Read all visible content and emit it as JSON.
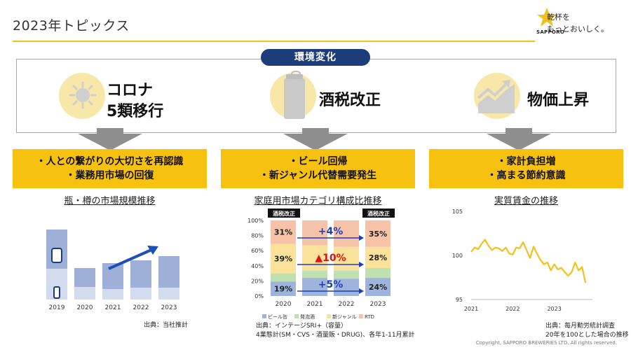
{
  "page": {
    "title": "2023年トピックス",
    "copyright": "Copyright, SAPPORO BREWERIES LTD. All rights reserved."
  },
  "logo": {
    "slogan_line1": "乾杯を",
    "slogan_line2": "もっとおいしく。",
    "brand": "SAPPORO"
  },
  "env": {
    "label": "環境変化"
  },
  "topics": [
    {
      "line1": "コロナ",
      "line2": "5類移行",
      "icon": "virus-icon",
      "box_line1": "・人との繋がりの大切さを再認識",
      "box_line2": "・業務用市場の回復",
      "chart_title": "瓶・樽の市場規模推移",
      "source": "出典：当社推計"
    },
    {
      "line1": "酒税改正",
      "icon": "beer-can-icon",
      "box_line1": "・ビール回帰",
      "box_line2": "・新ジャンル代替需要発生",
      "chart_title": "家庭用市場カテゴリ構成比推移",
      "source_line1": "出典：インテージSRI+（容量）",
      "source_line2": "4業態計(SM・CVS・酒量販・DRUG)、各年1-11月累計"
    },
    {
      "line1": "物価上昇",
      "icon": "rising-chart-icon",
      "box_line1": "・家計負担増",
      "box_line2": "・高まる節約意識",
      "chart_title": "実質賃金の推移",
      "source_line1": "出典：毎月勤労統計調査",
      "source_line2": "20年を100とした場合の推移"
    }
  ],
  "chart_data": [
    {
      "type": "bar",
      "title": "瓶・樽の市場規模推移",
      "categories": [
        "2019",
        "2020",
        "2021",
        "2022",
        "2023"
      ],
      "series": [
        {
          "values": [
            100,
            45,
            52,
            56,
            62
          ]
        },
        {
          "values": [
            44,
            18,
            15,
            17,
            17
          ]
        }
      ],
      "colors": [
        "#9fb0d8",
        "#d3dcef"
      ],
      "trend_arrow": "2021→2023 rising",
      "icons": [
        "keg-icon",
        "bottle-icon"
      ]
    },
    {
      "type": "bar",
      "title": "家庭用市場カテゴリ構成比推移",
      "categories": [
        "2020",
        "2021",
        "2022",
        "2023"
      ],
      "series": [
        {
          "name": "ビール缶",
          "values": [
            19,
            24,
            23,
            24
          ],
          "color": "#9fb4dc"
        },
        {
          "name": "発泡酒",
          "values": [
            11,
            10,
            11,
            13
          ],
          "color": "#bfe0b0"
        },
        {
          "name": "新ジャンル",
          "values": [
            39,
            33,
            31,
            28
          ],
          "color": "#fbe29a"
        },
        {
          "name": "RTD",
          "values": [
            31,
            33,
            35,
            35
          ],
          "color": "#f6c2a8"
        }
      ],
      "labeled": {
        "2020": [
          "19%",
          "39%",
          "31%"
        ],
        "2023": [
          "24%",
          "28%",
          "35%"
        ]
      },
      "yticks": [
        "0%",
        "20%",
        "40%",
        "60%",
        "80%",
        "100%"
      ],
      "tax_badge": "酒税改正",
      "annotations": [
        "+4%",
        "▲10%",
        "+5%"
      ]
    },
    {
      "type": "line",
      "title": "実質賃金の推移",
      "x": [
        "2021-01",
        "2021-02",
        "2021-03",
        "2021-04",
        "2021-05",
        "2021-06",
        "2021-07",
        "2021-08",
        "2021-09",
        "2021-10",
        "2021-11",
        "2021-12",
        "2022-01",
        "2022-02",
        "2022-03",
        "2022-04",
        "2022-05",
        "2022-06",
        "2022-07",
        "2022-08",
        "2022-09",
        "2022-10",
        "2022-11",
        "2022-12",
        "2023-01",
        "2023-02",
        "2023-03",
        "2023-04",
        "2023-05",
        "2023-06",
        "2023-07",
        "2023-08",
        "2023-09",
        "2023-10"
      ],
      "y": [
        100.4,
        100.9,
        100.7,
        101.3,
        101.8,
        101.1,
        100.6,
        100.9,
        100.8,
        100.5,
        100.9,
        100.2,
        100.1,
        100.9,
        100.8,
        101.5,
        100.6,
        99.7,
        101.0,
        100.2,
        99.5,
        99.0,
        99.2,
        98.3,
        99.0,
        98.4,
        98.6,
        98.1,
        97.7,
        98.1,
        99.2,
        98.3,
        98.7,
        96.9
      ],
      "yticks": [
        "95",
        "100",
        "105"
      ],
      "xticks": [
        "2021",
        "2022",
        "2023"
      ],
      "ylim": [
        95,
        105
      ],
      "color": "#f2c21a"
    }
  ]
}
